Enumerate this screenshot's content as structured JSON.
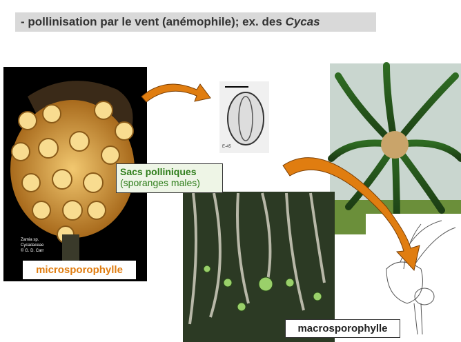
{
  "slide": {
    "title": {
      "text": "- pollinisation par le vent (anémophile); ex. des ",
      "italic": "Cycas"
    },
    "sacs_label": {
      "line1": "Sacs polliniques",
      "line2": "(sporanges males)"
    },
    "micro_label": "microsporophylle",
    "macro_label": "macrosporophylle",
    "photo_credit": [
      "Zamia sp.",
      "Cycadaceae",
      "© G. D. Carr"
    ],
    "pollen_caption": "E-45"
  }
}
